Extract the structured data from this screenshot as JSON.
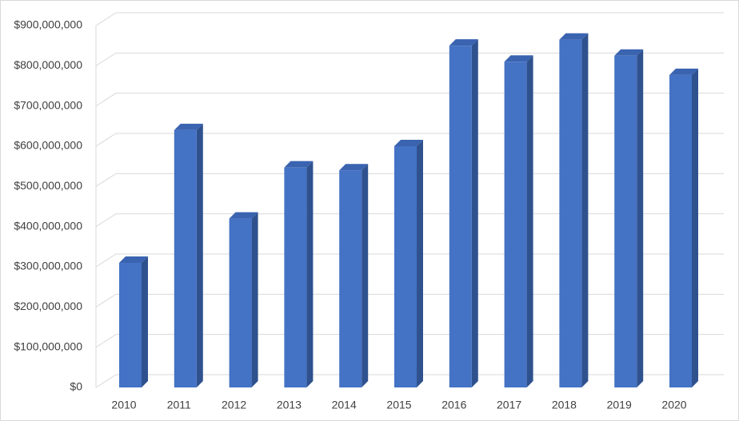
{
  "chart_data": {
    "type": "bar3d",
    "categories": [
      "2010",
      "2011",
      "2012",
      "2013",
      "2014",
      "2015",
      "2016",
      "2017",
      "2018",
      "2019",
      "2020"
    ],
    "values": [
      310000000,
      640000000,
      420000000,
      547000000,
      540000000,
      600000000,
      850000000,
      810000000,
      865000000,
      825000000,
      777000000
    ],
    "color": "#4472c4",
    "side_color": "#2f528f",
    "top_color": "#3a63b0",
    "ylim": [
      0,
      900000000
    ],
    "yticks": [
      {
        "value": 0,
        "label": "$0"
      },
      {
        "value": 100000000,
        "label": "$100,000,000"
      },
      {
        "value": 200000000,
        "label": "$200,000,000"
      },
      {
        "value": 300000000,
        "label": "$300,000,000"
      },
      {
        "value": 400000000,
        "label": "$400,000,000"
      },
      {
        "value": 500000000,
        "label": "$500,000,000"
      },
      {
        "value": 600000000,
        "label": "$600,000,000"
      },
      {
        "value": 700000000,
        "label": "$700,000,000"
      },
      {
        "value": 800000000,
        "label": "$800,000,000"
      },
      {
        "value": 900000000,
        "label": "$900,000,000"
      }
    ],
    "grid": true
  }
}
